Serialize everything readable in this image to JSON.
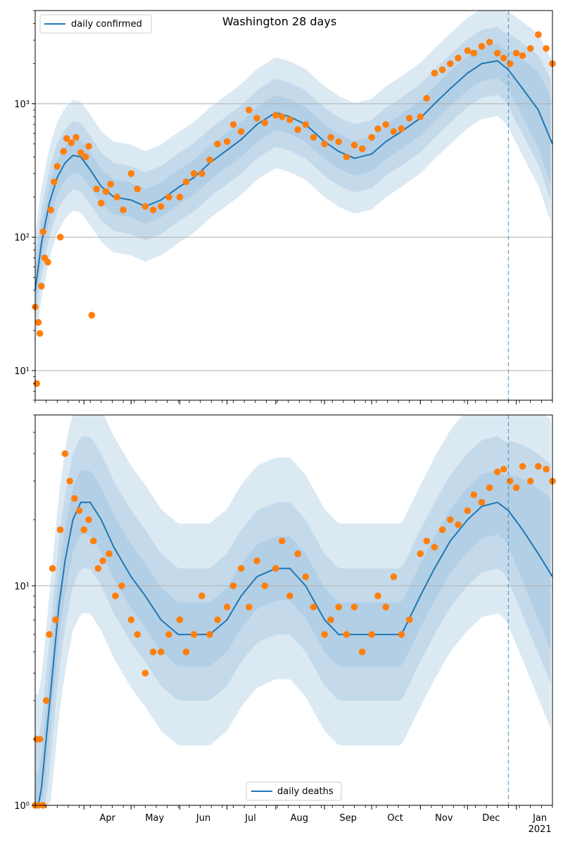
{
  "chart_data": [
    {
      "type": "line",
      "title": "Washington 28 days",
      "xlabel": "",
      "ylabel": "",
      "yscale": "log",
      "ylim": [
        6,
        5000
      ],
      "yticks": [
        {
          "value": 10,
          "label": "10¹"
        },
        {
          "value": 100,
          "label": "10²"
        },
        {
          "value": 1000,
          "label": "10³"
        }
      ],
      "grid": "horizontal",
      "legend": {
        "placement": "top-left",
        "entries": [
          "daily confirmed"
        ]
      },
      "forecast_start": "2020-12-27",
      "colors": {
        "line": "#1f77b4",
        "points": "#ff7f0e",
        "band": "#1f77b4",
        "forecast_line": "#1f77b4"
      },
      "series": [
        {
          "name": "daily confirmed",
          "kind": "model-median",
          "x": [
            "2020-03-01",
            "2020-03-05",
            "2020-03-10",
            "2020-03-15",
            "2020-03-20",
            "2020-03-25",
            "2020-03-30",
            "2020-04-05",
            "2020-04-12",
            "2020-04-20",
            "2020-05-01",
            "2020-05-10",
            "2020-05-20",
            "2020-06-01",
            "2020-06-10",
            "2020-06-20",
            "2020-07-01",
            "2020-07-10",
            "2020-07-20",
            "2020-08-01",
            "2020-08-10",
            "2020-08-20",
            "2020-09-01",
            "2020-09-10",
            "2020-09-20",
            "2020-10-01",
            "2020-10-10",
            "2020-10-20",
            "2020-11-01",
            "2020-11-10",
            "2020-11-20",
            "2020-12-01",
            "2020-12-10",
            "2020-12-20",
            "2020-12-27",
            "2021-01-05",
            "2021-01-15",
            "2021-01-24"
          ],
          "y": [
            40,
            90,
            180,
            280,
            360,
            410,
            400,
            320,
            240,
            200,
            190,
            170,
            190,
            240,
            280,
            360,
            450,
            540,
            700,
            860,
            800,
            700,
            520,
            440,
            390,
            420,
            520,
            620,
            780,
            1000,
            1300,
            1700,
            2000,
            2100,
            1800,
            1300,
            900,
            500
          ]
        },
        {
          "name": "",
          "kind": "observed",
          "x": [
            "2020-03-01",
            "2020-03-02",
            "2020-03-03",
            "2020-03-04",
            "2020-03-05",
            "2020-03-06",
            "2020-03-07",
            "2020-03-09",
            "2020-03-11",
            "2020-03-13",
            "2020-03-15",
            "2020-03-17",
            "2020-03-19",
            "2020-03-21",
            "2020-03-24",
            "2020-03-27",
            "2020-03-30",
            "2020-04-02",
            "2020-04-04",
            "2020-04-06",
            "2020-04-09",
            "2020-04-12",
            "2020-04-15",
            "2020-04-18",
            "2020-04-22",
            "2020-04-26",
            "2020-05-01",
            "2020-05-05",
            "2020-05-10",
            "2020-05-15",
            "2020-05-20",
            "2020-05-25",
            "2020-06-01",
            "2020-06-05",
            "2020-06-10",
            "2020-06-15",
            "2020-06-20",
            "2020-06-25",
            "2020-07-01",
            "2020-07-05",
            "2020-07-10",
            "2020-07-15",
            "2020-07-20",
            "2020-07-25",
            "2020-08-01",
            "2020-08-05",
            "2020-08-10",
            "2020-08-15",
            "2020-08-20",
            "2020-08-25",
            "2020-09-01",
            "2020-09-05",
            "2020-09-10",
            "2020-09-15",
            "2020-09-20",
            "2020-09-25",
            "2020-10-01",
            "2020-10-05",
            "2020-10-10",
            "2020-10-15",
            "2020-10-20",
            "2020-10-25",
            "2020-11-01",
            "2020-11-05",
            "2020-11-10",
            "2020-11-15",
            "2020-11-20",
            "2020-11-25",
            "2020-12-01",
            "2020-12-05",
            "2020-12-10",
            "2020-12-15",
            "2020-12-20",
            "2020-12-24",
            "2020-12-28",
            "2021-01-01",
            "2021-01-05",
            "2021-01-10",
            "2021-01-15",
            "2021-01-20",
            "2021-01-24"
          ],
          "y": [
            30,
            8,
            23,
            19,
            43,
            110,
            70,
            65,
            160,
            260,
            340,
            100,
            440,
            550,
            510,
            560,
            430,
            400,
            480,
            26,
            230,
            180,
            220,
            250,
            200,
            160,
            300,
            230,
            170,
            160,
            170,
            200,
            200,
            260,
            300,
            300,
            380,
            500,
            520,
            700,
            620,
            900,
            780,
            720,
            820,
            800,
            760,
            640,
            700,
            560,
            500,
            560,
            520,
            400,
            490,
            460,
            560,
            650,
            700,
            620,
            650,
            780,
            800,
            1100,
            1700,
            1800,
            2000,
            2200,
            2500,
            2400,
            2700,
            2900,
            2400,
            2200,
            2000,
            2400,
            2300,
            2600,
            3300,
            2600,
            2000
          ]
        }
      ]
    },
    {
      "type": "line",
      "title": "",
      "xlabel": "",
      "ylabel": "",
      "yscale": "log",
      "ylim": [
        1,
        60
      ],
      "yticks": [
        {
          "value": 1,
          "label": "10⁰"
        },
        {
          "value": 10,
          "label": "10¹"
        }
      ],
      "grid": "horizontal",
      "legend": {
        "placement": "bottom-center",
        "entries": [
          "daily deaths"
        ]
      },
      "forecast_start": "2020-12-27",
      "x_tick_labels": [
        "Apr",
        "May",
        "Jun",
        "Jul",
        "Aug",
        "Sep",
        "Oct",
        "Nov",
        "Dec",
        "Jan"
      ],
      "x_tick_sublabel": "2021",
      "colors": {
        "line": "#1f77b4",
        "points": "#ff7f0e",
        "band": "#1f77b4",
        "forecast_line": "#1f77b4"
      },
      "series": [
        {
          "name": "daily deaths",
          "kind": "model-median",
          "x": [
            "2020-03-01",
            "2020-03-03",
            "2020-03-05",
            "2020-03-08",
            "2020-03-12",
            "2020-03-16",
            "2020-03-20",
            "2020-03-25",
            "2020-03-30",
            "2020-04-05",
            "2020-04-12",
            "2020-04-20",
            "2020-05-01",
            "2020-05-10",
            "2020-05-20",
            "2020-05-31",
            "2020-06-10",
            "2020-06-20",
            "2020-07-01",
            "2020-07-10",
            "2020-07-20",
            "2020-08-01",
            "2020-08-10",
            "2020-08-20",
            "2020-09-01",
            "2020-09-10",
            "2020-09-20",
            "2020-10-01",
            "2020-10-10",
            "2020-10-20",
            "2020-11-01",
            "2020-11-10",
            "2020-11-20",
            "2020-12-01",
            "2020-12-10",
            "2020-12-20",
            "2020-12-27",
            "2021-01-05",
            "2021-01-15",
            "2021-01-24"
          ],
          "y": [
            1,
            1,
            1.2,
            2,
            4,
            8,
            13,
            20,
            24,
            24,
            20,
            15,
            11,
            9,
            7,
            6,
            6,
            6,
            7,
            9,
            11,
            12,
            12,
            10,
            7,
            6,
            6,
            6,
            6,
            6,
            9,
            12,
            16,
            20,
            23,
            24,
            22,
            18,
            14,
            11
          ]
        },
        {
          "name": "",
          "kind": "observed",
          "x": [
            "2020-03-01",
            "2020-03-02",
            "2020-03-03",
            "2020-03-04",
            "2020-03-06",
            "2020-03-08",
            "2020-03-10",
            "2020-03-12",
            "2020-03-14",
            "2020-03-17",
            "2020-03-20",
            "2020-03-23",
            "2020-03-26",
            "2020-03-29",
            "2020-04-01",
            "2020-04-04",
            "2020-04-07",
            "2020-04-10",
            "2020-04-13",
            "2020-04-17",
            "2020-04-21",
            "2020-04-25",
            "2020-05-01",
            "2020-05-05",
            "2020-05-10",
            "2020-05-15",
            "2020-05-20",
            "2020-05-25",
            "2020-06-01",
            "2020-06-05",
            "2020-06-10",
            "2020-06-15",
            "2020-06-20",
            "2020-06-25",
            "2020-07-01",
            "2020-07-05",
            "2020-07-10",
            "2020-07-15",
            "2020-07-20",
            "2020-07-25",
            "2020-08-01",
            "2020-08-05",
            "2020-08-10",
            "2020-08-15",
            "2020-08-20",
            "2020-08-25",
            "2020-09-01",
            "2020-09-05",
            "2020-09-10",
            "2020-09-15",
            "2020-09-20",
            "2020-09-25",
            "2020-10-01",
            "2020-10-05",
            "2020-10-10",
            "2020-10-15",
            "2020-10-20",
            "2020-10-25",
            "2020-11-01",
            "2020-11-05",
            "2020-11-10",
            "2020-11-15",
            "2020-11-20",
            "2020-11-25",
            "2020-12-01",
            "2020-12-05",
            "2020-12-10",
            "2020-12-15",
            "2020-12-20",
            "2020-12-24",
            "2020-12-28",
            "2021-01-01",
            "2021-01-05",
            "2021-01-10",
            "2021-01-15",
            "2021-01-20",
            "2021-01-24"
          ],
          "y": [
            1,
            2,
            1,
            2,
            1,
            3,
            6,
            12,
            7,
            18,
            40,
            30,
            25,
            22,
            18,
            20,
            16,
            12,
            13,
            14,
            9,
            10,
            7,
            6,
            4,
            5,
            5,
            6,
            7,
            5,
            6,
            9,
            6,
            7,
            8,
            10,
            12,
            8,
            13,
            10,
            12,
            16,
            9,
            14,
            11,
            8,
            6,
            7,
            8,
            6,
            8,
            5,
            6,
            9,
            8,
            11,
            6,
            7,
            14,
            16,
            15,
            18,
            20,
            19,
            22,
            26,
            24,
            28,
            33,
            34,
            30,
            28,
            35,
            30,
            35,
            34,
            30
          ]
        }
      ]
    }
  ],
  "x_axis": {
    "start": "2020-03-01",
    "end": "2021-01-24"
  }
}
